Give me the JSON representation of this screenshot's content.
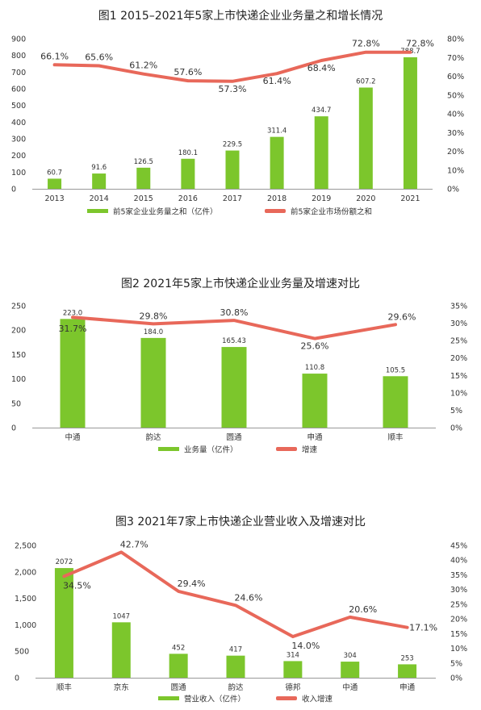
{
  "chart_data": [
    {
      "type": "bar",
      "title": "图1 2015–2021年5家上市快递企业业务量之和增长情况",
      "categories": [
        "2013",
        "2014",
        "2015",
        "2016",
        "2017",
        "2018",
        "2019",
        "2020",
        "2021"
      ],
      "series": [
        {
          "name": "前5家企业业务量之和（亿件）",
          "type": "bar",
          "axis": "left",
          "values": [
            60.7,
            91.6,
            126.5,
            180.1,
            229.5,
            311.4,
            434.7,
            607.2,
            788.7
          ],
          "labels": [
            "60.7",
            "91.6",
            "126.5",
            "180.1",
            "229.5",
            "311.4",
            "434.7",
            "607.2",
            "788.7"
          ]
        },
        {
          "name": "前5家企业市场份额之和",
          "type": "line",
          "axis": "right",
          "values": [
            66.1,
            65.6,
            61.2,
            57.6,
            57.3,
            61.4,
            68.4,
            72.8,
            72.8
          ],
          "labels": [
            "66.1%",
            "65.6%",
            "61.2%",
            "57.6%",
            "57.3%",
            "61.4%",
            "68.4%",
            "72.8%",
            "72.8%"
          ]
        }
      ],
      "yleft": {
        "ylim": [
          0,
          900
        ],
        "ticks": [
          "0",
          "100",
          "200",
          "300",
          "400",
          "500",
          "600",
          "700",
          "800",
          "900"
        ]
      },
      "yright": {
        "ylim": [
          0,
          80
        ],
        "ticks": [
          "0%",
          "10%",
          "20%",
          "30%",
          "40%",
          "50%",
          "60%",
          "70%",
          "80%"
        ]
      },
      "legend": "bottom",
      "colors": {
        "bar": "#7cc62c",
        "line": "#e8685a"
      }
    },
    {
      "type": "bar",
      "title": "图2 2021年5家上市快递企业业务量及增速对比",
      "categories": [
        "中通",
        "韵达",
        "圆通",
        "申通",
        "顺丰"
      ],
      "series": [
        {
          "name": "业务量（亿件）",
          "type": "bar",
          "axis": "left",
          "values": [
            223.0,
            184.0,
            165.43,
            110.8,
            105.5
          ],
          "labels": [
            "223.0",
            "184.0",
            "165.43",
            "110.8",
            "105.5"
          ]
        },
        {
          "name": "增速",
          "type": "line",
          "axis": "right",
          "values": [
            31.7,
            29.8,
            30.8,
            25.6,
            29.6
          ],
          "labels": [
            "31.7%",
            "29.8%",
            "30.8%",
            "25.6%",
            "29.6%"
          ]
        }
      ],
      "yleft": {
        "ylim": [
          0,
          250
        ],
        "ticks": [
          "0",
          "50",
          "100",
          "150",
          "200",
          "250"
        ]
      },
      "yright": {
        "ylim": [
          0,
          35
        ],
        "ticks": [
          "0%",
          "5%",
          "10%",
          "15%",
          "20%",
          "25%",
          "30%",
          "35%"
        ]
      },
      "legend": "bottom",
      "colors": {
        "bar": "#7cc62c",
        "line": "#e8685a"
      }
    },
    {
      "type": "bar",
      "title": "图3 2021年7家上市快递企业营业收入及增速对比",
      "categories": [
        "顺丰",
        "京东",
        "圆通",
        "韵达",
        "德邦",
        "中通",
        "申通"
      ],
      "series": [
        {
          "name": "营业收入（亿件）",
          "type": "bar",
          "axis": "left",
          "values": [
            2072,
            1047,
            452,
            417,
            314,
            304,
            253
          ],
          "labels": [
            "2072",
            "1047",
            "452",
            "417",
            "314",
            "304",
            "253"
          ]
        },
        {
          "name": "收入增速",
          "type": "line",
          "axis": "right",
          "values": [
            34.5,
            42.7,
            29.4,
            24.6,
            14.0,
            20.6,
            17.1
          ],
          "labels": [
            "34.5%",
            "42.7%",
            "29.4%",
            "24.6%",
            "14.0%",
            "20.6%",
            "17.1%"
          ]
        }
      ],
      "yleft": {
        "ylim": [
          0,
          2500
        ],
        "ticks": [
          "0",
          "500",
          "1,000",
          "1,500",
          "2,000",
          "2,500"
        ]
      },
      "yright": {
        "ylim": [
          0,
          45
        ],
        "ticks": [
          "0%",
          "5%",
          "10%",
          "15%",
          "20%",
          "25%",
          "30%",
          "35%",
          "40%",
          "45%"
        ]
      },
      "legend": "bottom",
      "colors": {
        "bar": "#7cc62c",
        "line": "#e8685a"
      }
    }
  ]
}
